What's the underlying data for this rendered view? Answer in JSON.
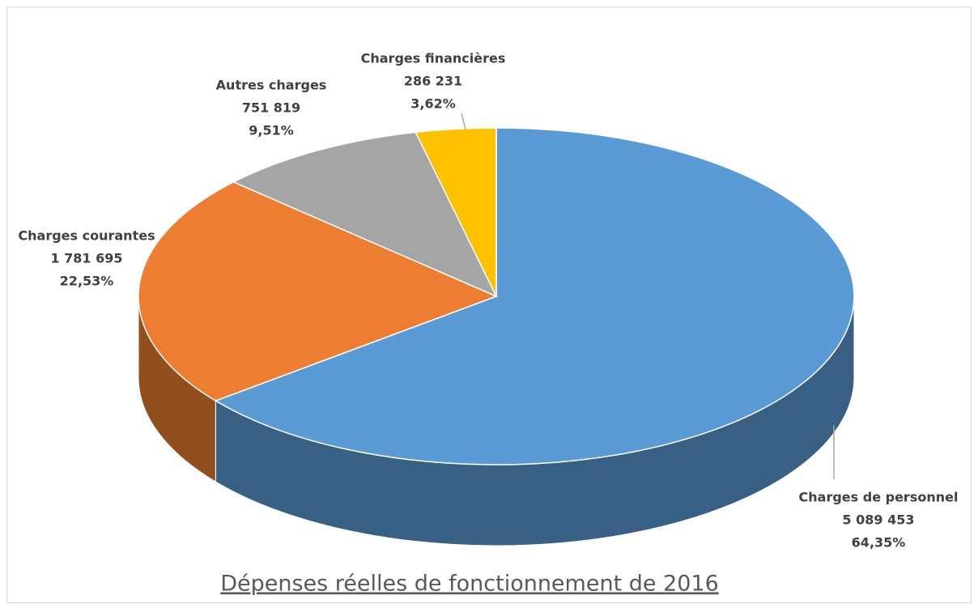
{
  "chart_data": {
    "type": "pie",
    "title": "Dépenses réelles de fonctionnement de 2016",
    "categories": [
      "Charges de personnel",
      "Charges courantes",
      "Autres charges",
      "Charges financières"
    ],
    "values": [
      5089453,
      1781695,
      751819,
      286231
    ],
    "value_labels": [
      "5 089 453",
      "1 781 695",
      "751 819",
      "286 231"
    ],
    "percentages": [
      64.35,
      22.53,
      9.51,
      3.62
    ],
    "percentage_labels": [
      "64,35%",
      "22,53%",
      "9,51%",
      "3,62%"
    ],
    "colors": [
      "#5b9bd5",
      "#ed7d31",
      "#a5a5a5",
      "#ffc000"
    ]
  }
}
